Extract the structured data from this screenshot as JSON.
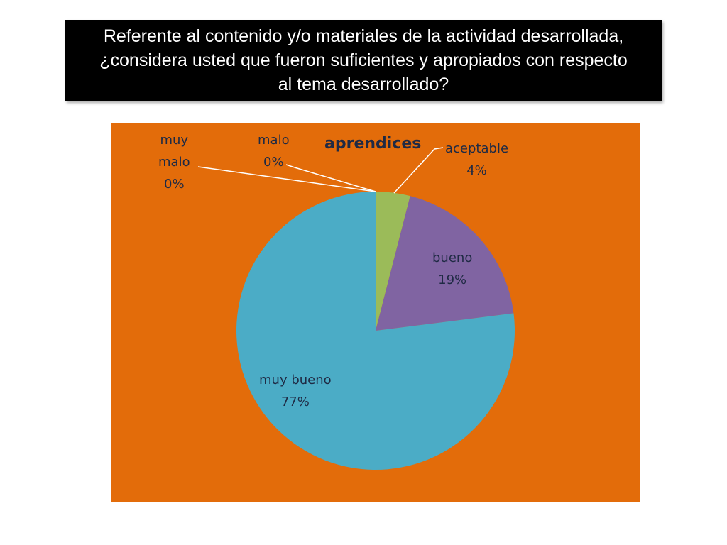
{
  "question": {
    "text": "Referente al contenido y/o materiales de la actividad desarrollada, ¿considera usted que fueron suficientes y apropiados con respecto al tema desarrollado?"
  },
  "chart_data": {
    "type": "pie",
    "title": "aprendices",
    "slices": [
      {
        "category": "aceptable",
        "value": 4,
        "percent_label": "4%",
        "color": "#9bbb59"
      },
      {
        "category": "bueno",
        "value": 19,
        "percent_label": "19%",
        "color": "#8064a2"
      },
      {
        "category": "muy bueno",
        "value": 77,
        "percent_label": "77%",
        "color": "#4bacc6"
      },
      {
        "category": "muy malo",
        "value": 0,
        "percent_label": "0%",
        "color": "#c0504d"
      },
      {
        "category": "malo",
        "value": 0,
        "percent_label": "0%",
        "color": "#4f81bd"
      }
    ],
    "background_color": "#e36c0a",
    "legend": "none"
  }
}
